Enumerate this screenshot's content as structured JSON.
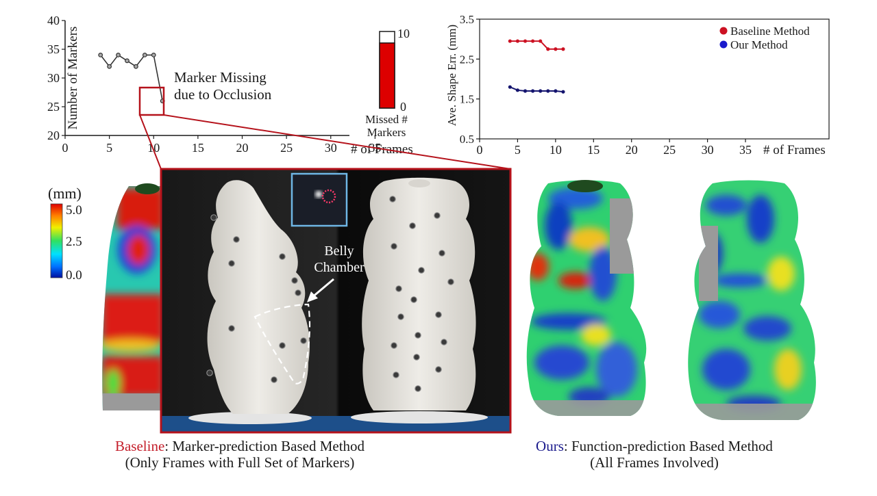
{
  "chart_data": [
    {
      "type": "line",
      "xlabel": "# of Frames",
      "ylabel": "Number of Markers",
      "xlim": [
        0,
        40
      ],
      "ylim": [
        20,
        40
      ],
      "xticks": [
        0,
        5,
        10,
        15,
        20,
        25,
        30,
        35
      ],
      "yticks": [
        20,
        25,
        30,
        35,
        40
      ],
      "grid": false,
      "series": [
        {
          "color": "#333333",
          "x": [
            4,
            5,
            6,
            7,
            8,
            9,
            10,
            11
          ],
          "y": [
            34,
            32,
            34,
            33,
            32,
            34,
            34,
            26
          ]
        }
      ],
      "annotation": {
        "line1": "Marker Missing",
        "line2": "due to Occlusion"
      },
      "bar_gauge": {
        "value": 8.5,
        "max": 10,
        "min": 0,
        "top_label": "10",
        "bottom_label": "0",
        "label_line1": "Missed #",
        "label_line2": "Markers",
        "color": "#dd0000"
      }
    },
    {
      "type": "line",
      "xlabel": "# of Frames",
      "ylabel": "Ave. Shape Err. (mm)",
      "xlim": [
        0,
        46
      ],
      "ylim": [
        0.5,
        3.5
      ],
      "xticks": [
        0,
        5,
        10,
        15,
        20,
        25,
        30,
        35
      ],
      "yticks": [
        0.5,
        1.5,
        2.5,
        3.5
      ],
      "grid": false,
      "legend": "top-right",
      "series": [
        {
          "name": "Baseline Method",
          "color": "#cc1122",
          "x": [
            4,
            5,
            6,
            7,
            8,
            9,
            10,
            11
          ],
          "y": [
            2.95,
            2.95,
            2.95,
            2.95,
            2.95,
            2.75,
            2.75,
            2.75
          ]
        },
        {
          "name": "Our Method",
          "color": "#14146e",
          "x": [
            4,
            5,
            6,
            7,
            8,
            9,
            10,
            11
          ],
          "y": [
            1.8,
            1.72,
            1.7,
            1.7,
            1.7,
            1.7,
            1.7,
            1.68
          ]
        }
      ]
    }
  ],
  "colorbar": {
    "unit": "(mm)",
    "max_label": "5.0",
    "mid_label": "2.5",
    "min_label": "0.0"
  },
  "photo_labels": {
    "belly_line1": "Belly",
    "belly_line2": "Chamber"
  },
  "captions": {
    "left": {
      "highlight": "Baseline",
      "highlight_color": "#c41e2a",
      "rest": ": Marker-prediction Based Method",
      "line2": "(Only Frames with Full Set of Markers)"
    },
    "right": {
      "highlight": "Ours",
      "highlight_color": "#1a1a8c",
      "rest": ": Function-prediction Based Method",
      "line2": "(All Frames Involved)"
    }
  },
  "colors": {
    "frame_red": "#b5121b",
    "inset_blue": "#6fb7e6"
  }
}
